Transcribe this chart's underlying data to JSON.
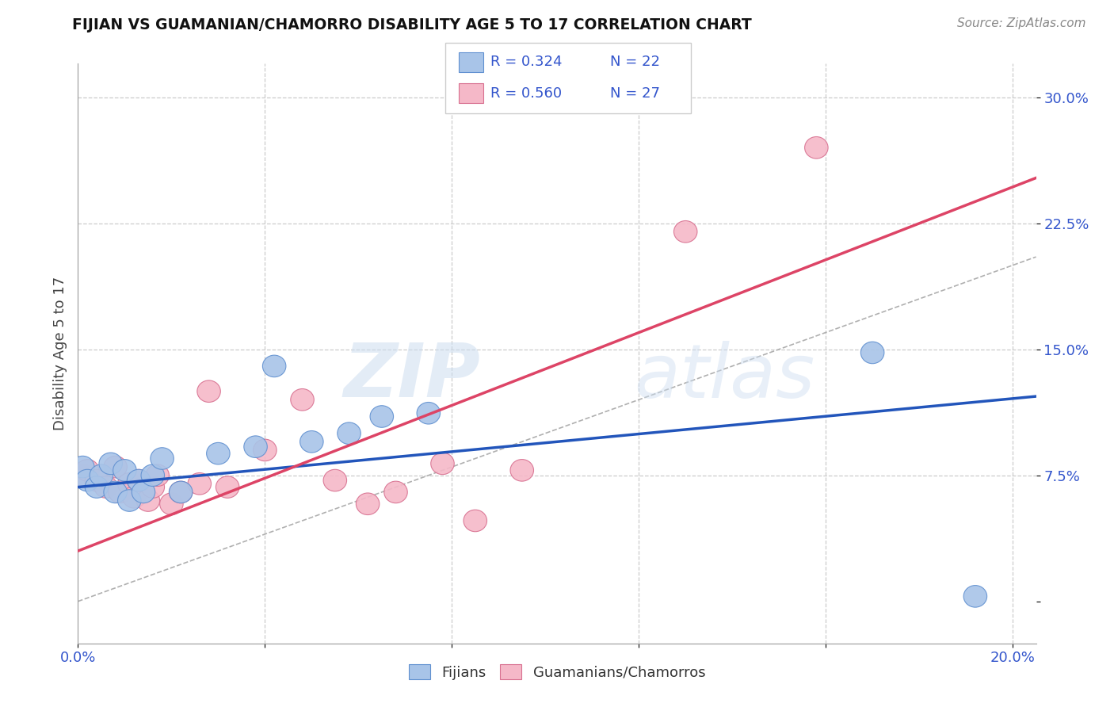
{
  "title": "FIJIAN VS GUAMANIAN/CHAMORRO DISABILITY AGE 5 TO 17 CORRELATION CHART",
  "source_text": "Source: ZipAtlas.com",
  "ylabel": "Disability Age 5 to 17",
  "xlim": [
    0.0,
    0.205
  ],
  "ylim": [
    -0.025,
    0.32
  ],
  "yticks": [
    0.0,
    0.075,
    0.15,
    0.225,
    0.3
  ],
  "ytick_labels": [
    "",
    "7.5%",
    "15.0%",
    "22.5%",
    "30.0%"
  ],
  "xticks": [
    0.0,
    0.04,
    0.08,
    0.12,
    0.16,
    0.2
  ],
  "xtick_labels": [
    "0.0%",
    "",
    "",
    "",
    "",
    "20.0%"
  ],
  "fijian_color": "#a8c4e8",
  "fijian_edge_color": "#6090d0",
  "guam_color": "#f5b8c8",
  "guam_edge_color": "#d87090",
  "fijian_line_color": "#2255bb",
  "guam_line_color": "#dd4466",
  "diagonal_color": "#b0b0b0",
  "legend_R_fijian": "R = 0.324",
  "legend_N_fijian": "N = 22",
  "legend_R_guam": "R = 0.560",
  "legend_N_guam": "N = 27",
  "fijian_scatter_x": [
    0.001,
    0.002,
    0.004,
    0.005,
    0.007,
    0.008,
    0.01,
    0.011,
    0.013,
    0.014,
    0.016,
    0.018,
    0.022,
    0.03,
    0.038,
    0.042,
    0.05,
    0.058,
    0.065,
    0.075,
    0.17,
    0.192
  ],
  "fijian_scatter_y": [
    0.08,
    0.072,
    0.068,
    0.075,
    0.082,
    0.065,
    0.078,
    0.06,
    0.072,
    0.065,
    0.075,
    0.085,
    0.065,
    0.088,
    0.092,
    0.14,
    0.095,
    0.1,
    0.11,
    0.112,
    0.148,
    0.003
  ],
  "guam_scatter_x": [
    0.001,
    0.002,
    0.004,
    0.006,
    0.008,
    0.009,
    0.011,
    0.012,
    0.013,
    0.015,
    0.016,
    0.017,
    0.02,
    0.022,
    0.026,
    0.028,
    0.032,
    0.04,
    0.048,
    0.055,
    0.062,
    0.068,
    0.078,
    0.085,
    0.095,
    0.13,
    0.158
  ],
  "guam_scatter_y": [
    0.075,
    0.078,
    0.072,
    0.068,
    0.08,
    0.065,
    0.07,
    0.062,
    0.072,
    0.06,
    0.068,
    0.075,
    0.058,
    0.065,
    0.07,
    0.125,
    0.068,
    0.09,
    0.12,
    0.072,
    0.058,
    0.065,
    0.082,
    0.048,
    0.078,
    0.22,
    0.27
  ],
  "fijian_line_x": [
    0.0,
    0.205
  ],
  "fijian_line_y": [
    0.068,
    0.122
  ],
  "guam_line_x": [
    0.0,
    0.205
  ],
  "guam_line_y": [
    0.03,
    0.252
  ],
  "diagonal_line_x": [
    0.0,
    0.205
  ],
  "diagonal_line_y": [
    0.0,
    0.205
  ],
  "watermark_zip": "ZIP",
  "watermark_atlas": "atlas",
  "background_color": "#ffffff",
  "grid_color": "#cccccc",
  "title_color": "#111111",
  "tick_label_color": "#3355cc",
  "ylabel_color": "#444444"
}
